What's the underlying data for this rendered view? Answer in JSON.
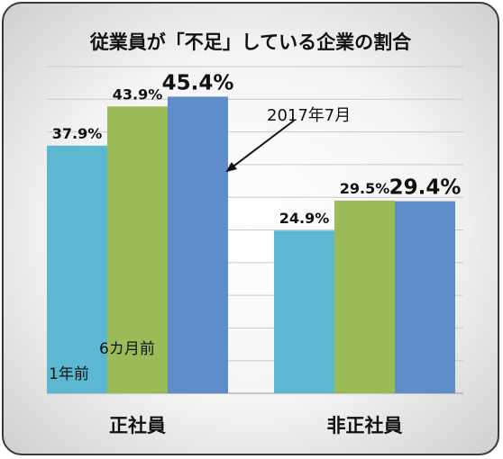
{
  "chart_data": {
    "type": "bar",
    "title": "従業員が「不足」している企業の割合",
    "categories": [
      "正社員",
      "非正社員"
    ],
    "ylim": [
      0,
      50
    ],
    "grid": true,
    "series": [
      {
        "name": "1年前",
        "values": [
          37.9,
          24.9
        ],
        "labels": [
          "37.9%",
          "24.9%"
        ],
        "color": "#5bb8d0"
      },
      {
        "name": "6カ月前",
        "values": [
          43.9,
          29.5
        ],
        "labels": [
          "43.9%",
          "29.5%"
        ],
        "color": "#9bbb59"
      },
      {
        "name": "2017年7月",
        "values": [
          45.4,
          29.4
        ],
        "labels": [
          "45.4%",
          "29.4%"
        ],
        "color": "#5f8ccb"
      }
    ],
    "annotations": {
      "arrow_label": "2017年7月",
      "bar_label_1": "1年前",
      "bar_label_2": "6カ月前"
    }
  }
}
